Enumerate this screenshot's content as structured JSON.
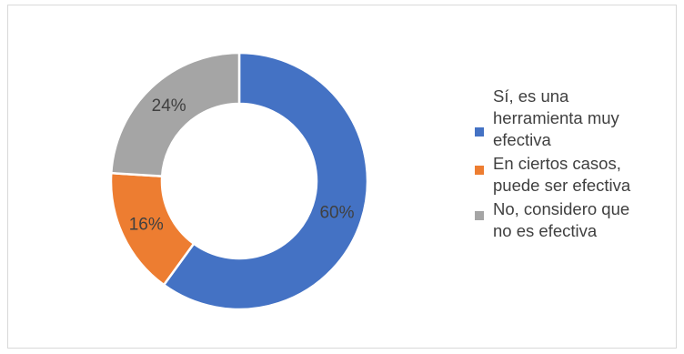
{
  "chart_data": {
    "type": "pie",
    "donut": true,
    "title": "",
    "categories": [
      "Sí, es una herramienta muy efectiva",
      "En ciertos casos, puede ser efectiva",
      "No, considero que no es efectiva"
    ],
    "values": [
      60,
      16,
      24
    ],
    "labels": [
      "60%",
      "16%",
      "24%"
    ],
    "colors": [
      "#4472C4",
      "#ED7D31",
      "#A5A5A5"
    ],
    "legend_position": "right"
  },
  "legend": {
    "items": [
      {
        "text": "Sí, es una\nherramienta muy\nefectiva",
        "color": "#4472C4"
      },
      {
        "text": "En ciertos casos,\npuede ser efectiva",
        "color": "#ED7D31"
      },
      {
        "text": "No, considero que\nno es efectiva",
        "color": "#A5A5A5"
      }
    ]
  }
}
